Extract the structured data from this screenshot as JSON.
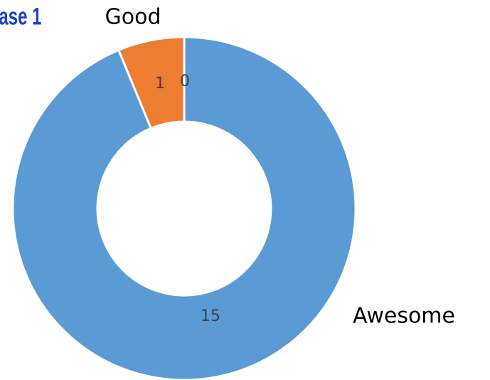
{
  "chart_data": {
    "type": "donut",
    "title": "ase 1",
    "categories": [
      "Awesome",
      "Good",
      null
    ],
    "values": [
      15,
      1,
      0
    ],
    "colors": [
      "#5b9bd5",
      "#ed7d31",
      "#a5a5a5"
    ]
  }
}
